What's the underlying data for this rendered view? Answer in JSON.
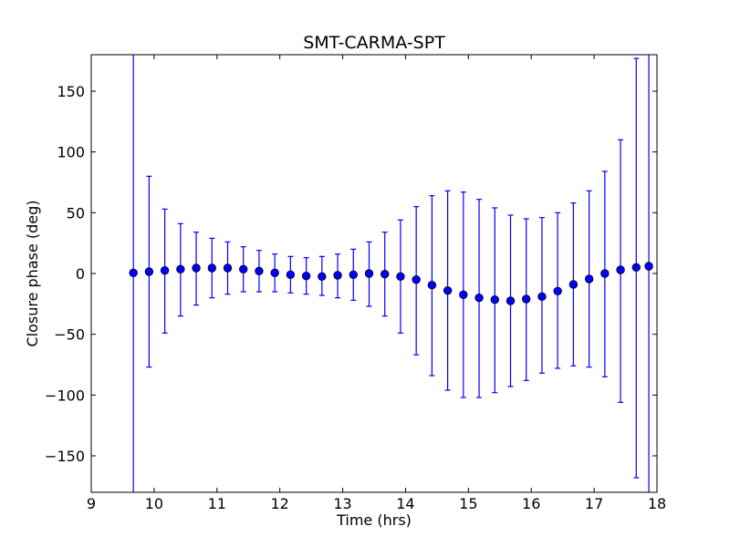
{
  "chart_data": {
    "type": "scatter",
    "title": "SMT-CARMA-SPT",
    "xlabel": "Time (hrs)",
    "ylabel": "Closure phase (deg)",
    "xlim": [
      9,
      18
    ],
    "ylim": [
      -180,
      180
    ],
    "xticks": [
      "9",
      "10",
      "11",
      "12",
      "13",
      "14",
      "15",
      "16",
      "17",
      "18"
    ],
    "yticks": [
      "150",
      "100",
      "50",
      "0",
      "−50",
      "−100",
      "−150"
    ],
    "grid": false,
    "legend": "none",
    "colors": {
      "marker": "#0000ff",
      "errorbar": "#0000ff",
      "axes": "#000000"
    },
    "series": [
      {
        "points": [
          {
            "x": 9.67,
            "y": 0.5,
            "ylo": -180,
            "yhi": 180
          },
          {
            "x": 9.92,
            "y": 1.5,
            "ylo": -77,
            "yhi": 80
          },
          {
            "x": 10.17,
            "y": 2.5,
            "ylo": -49,
            "yhi": 53
          },
          {
            "x": 10.42,
            "y": 3.5,
            "ylo": -35,
            "yhi": 41
          },
          {
            "x": 10.67,
            "y": 4.5,
            "ylo": -26,
            "yhi": 34
          },
          {
            "x": 10.92,
            "y": 4.5,
            "ylo": -20,
            "yhi": 29
          },
          {
            "x": 11.17,
            "y": 4.5,
            "ylo": -17,
            "yhi": 26
          },
          {
            "x": 11.42,
            "y": 3.5,
            "ylo": -15,
            "yhi": 22
          },
          {
            "x": 11.67,
            "y": 2.0,
            "ylo": -15,
            "yhi": 19
          },
          {
            "x": 11.92,
            "y": 0.5,
            "ylo": -15,
            "yhi": 16
          },
          {
            "x": 12.17,
            "y": -1.0,
            "ylo": -16,
            "yhi": 14
          },
          {
            "x": 12.42,
            "y": -2.0,
            "ylo": -17,
            "yhi": 13
          },
          {
            "x": 12.67,
            "y": -2.5,
            "ylo": -18,
            "yhi": 14
          },
          {
            "x": 12.92,
            "y": -1.5,
            "ylo": -20,
            "yhi": 16
          },
          {
            "x": 13.17,
            "y": -1.0,
            "ylo": -22,
            "yhi": 20
          },
          {
            "x": 13.42,
            "y": 0.0,
            "ylo": -27,
            "yhi": 26
          },
          {
            "x": 13.67,
            "y": -0.5,
            "ylo": -35,
            "yhi": 34
          },
          {
            "x": 13.92,
            "y": -2.5,
            "ylo": -49,
            "yhi": 44
          },
          {
            "x": 14.17,
            "y": -5.0,
            "ylo": -67,
            "yhi": 55
          },
          {
            "x": 14.42,
            "y": -9.5,
            "ylo": -84,
            "yhi": 64
          },
          {
            "x": 14.67,
            "y": -14.0,
            "ylo": -96,
            "yhi": 68
          },
          {
            "x": 14.92,
            "y": -17.5,
            "ylo": -102,
            "yhi": 67
          },
          {
            "x": 15.17,
            "y": -20.0,
            "ylo": -102,
            "yhi": 61
          },
          {
            "x": 15.42,
            "y": -21.5,
            "ylo": -98,
            "yhi": 54
          },
          {
            "x": 15.67,
            "y": -22.5,
            "ylo": -93,
            "yhi": 48
          },
          {
            "x": 15.92,
            "y": -21.0,
            "ylo": -88,
            "yhi": 45
          },
          {
            "x": 16.17,
            "y": -19.0,
            "ylo": -82,
            "yhi": 46
          },
          {
            "x": 16.42,
            "y": -14.5,
            "ylo": -78,
            "yhi": 50
          },
          {
            "x": 16.67,
            "y": -9.0,
            "ylo": -76,
            "yhi": 58
          },
          {
            "x": 16.92,
            "y": -4.5,
            "ylo": -77,
            "yhi": 68
          },
          {
            "x": 17.17,
            "y": 0.0,
            "ylo": -85,
            "yhi": 84
          },
          {
            "x": 17.42,
            "y": 3.0,
            "ylo": -106,
            "yhi": 110
          },
          {
            "x": 17.67,
            "y": 5.0,
            "ylo": -168,
            "yhi": 177
          },
          {
            "x": 17.87,
            "y": 6.0,
            "ylo": -180,
            "yhi": 180
          }
        ]
      }
    ]
  }
}
